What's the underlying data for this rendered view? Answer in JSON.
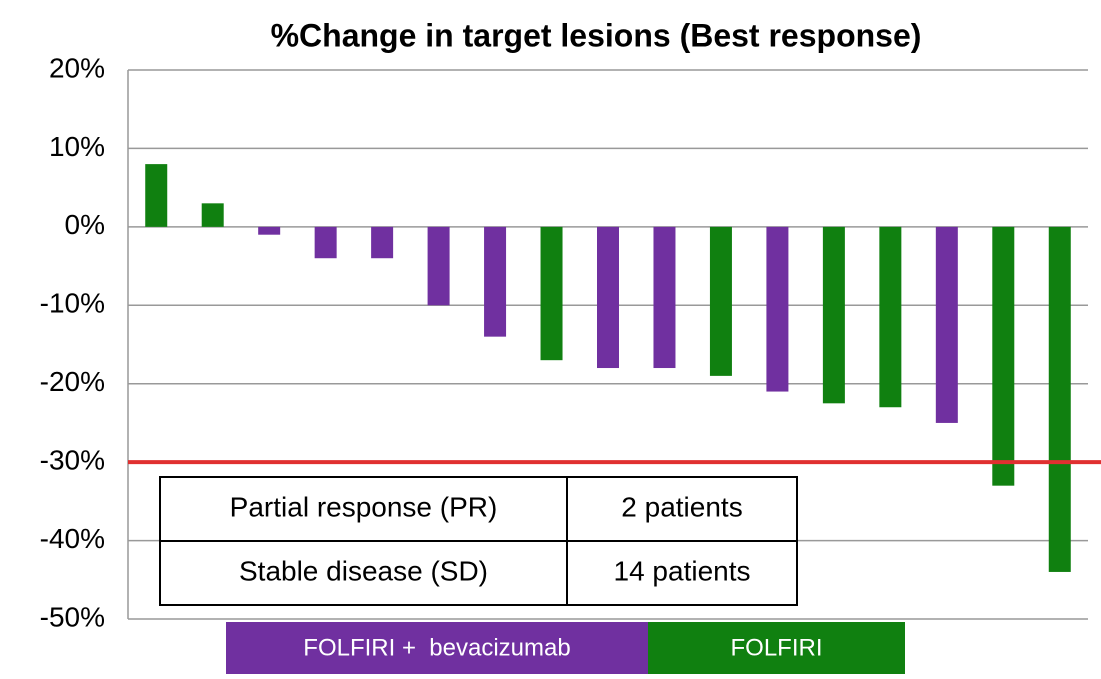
{
  "chart_data": {
    "type": "bar",
    "title": "%Change in target lesions (Best response)",
    "values": [
      8,
      3,
      -1,
      -4,
      -4,
      -10,
      -14,
      -17,
      -18,
      -18,
      -19,
      -21,
      -22.5,
      -23,
      -25,
      -33,
      -44
    ],
    "colors": [
      "#108010",
      "#108010",
      "#7030a0",
      "#7030a0",
      "#7030a0",
      "#7030a0",
      "#7030a0",
      "#108010",
      "#7030a0",
      "#7030a0",
      "#108010",
      "#7030a0",
      "#108010",
      "#108010",
      "#7030a0",
      "#108010",
      "#108010"
    ],
    "ylim": [
      -50,
      20
    ],
    "yticks": [
      {
        "value": -50,
        "label": "-50%"
      },
      {
        "value": -40,
        "label": "-40%"
      },
      {
        "value": -30,
        "label": "-30%"
      },
      {
        "value": -20,
        "label": "-20%"
      },
      {
        "value": -10,
        "label": "-10%"
      },
      {
        "value": 0,
        "label": "0%"
      },
      {
        "value": 10,
        "label": "10%"
      },
      {
        "value": 20,
        "label": "20%"
      }
    ],
    "grid": true,
    "reference_line": -30,
    "reference_color": "#e03030",
    "legend": [
      {
        "label": "FOLFIRI +  bevacizumab",
        "color": "#7030a0"
      },
      {
        "label": "FOLFIRI",
        "color": "#108010"
      }
    ],
    "table": {
      "rows": [
        [
          "Partial response (PR)",
          "2 patients"
        ],
        [
          "Stable disease (SD)",
          "14 patients"
        ]
      ]
    }
  }
}
